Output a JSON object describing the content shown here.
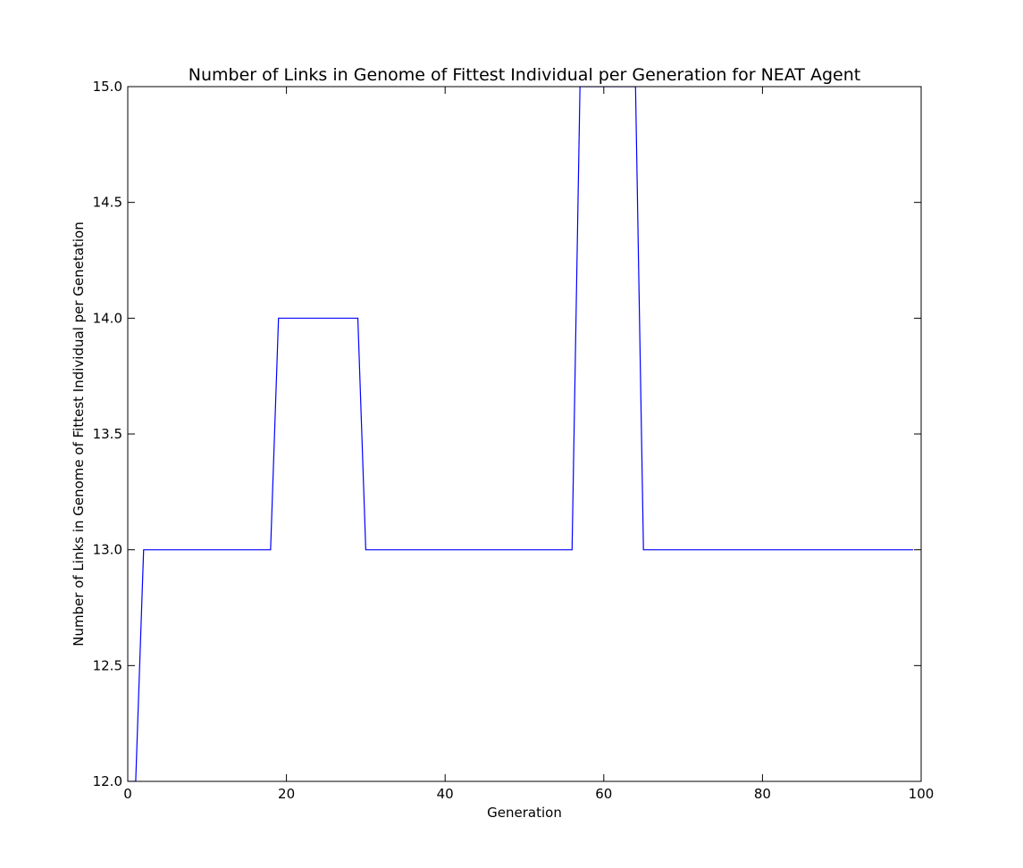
{
  "chart_data": {
    "type": "line",
    "title": "Number of Links in Genome of Fittest Individual per Generation for NEAT Agent",
    "xlabel": "Generation",
    "ylabel": "Number of Links in Genome of Fittest Individual per Genetation",
    "xlim": [
      0,
      100
    ],
    "ylim": [
      12.0,
      15.0
    ],
    "xticks": [
      0,
      20,
      40,
      60,
      80,
      100
    ],
    "xtick_labels": [
      "0",
      "20",
      "40",
      "60",
      "80",
      "100"
    ],
    "yticks": [
      12.0,
      12.5,
      13.0,
      13.5,
      14.0,
      14.5,
      15.0
    ],
    "ytick_labels": [
      "12.0",
      "12.5",
      "13.0",
      "13.5",
      "14.0",
      "14.5",
      "15.0"
    ],
    "grid": false,
    "legend": "none",
    "series": [
      {
        "color": "#0000ff",
        "x": [
          0,
          1,
          2,
          3,
          4,
          5,
          6,
          7,
          8,
          9,
          10,
          11,
          12,
          13,
          14,
          15,
          16,
          17,
          18,
          19,
          20,
          21,
          22,
          23,
          24,
          25,
          26,
          27,
          28,
          29,
          30,
          31,
          32,
          33,
          34,
          35,
          36,
          37,
          38,
          39,
          40,
          41,
          42,
          43,
          44,
          45,
          46,
          47,
          48,
          49,
          50,
          51,
          52,
          53,
          54,
          55,
          56,
          57,
          58,
          59,
          60,
          61,
          62,
          63,
          64,
          65,
          66,
          67,
          68,
          69,
          70,
          71,
          72,
          73,
          74,
          75,
          76,
          77,
          78,
          79,
          80,
          81,
          82,
          83,
          84,
          85,
          86,
          87,
          88,
          89,
          90,
          91,
          92,
          93,
          94,
          95,
          96,
          97,
          98,
          99
        ],
        "y": [
          12,
          12,
          13,
          13,
          13,
          13,
          13,
          13,
          13,
          13,
          13,
          13,
          13,
          13,
          13,
          13,
          13,
          13,
          13,
          14,
          14,
          14,
          14,
          14,
          14,
          14,
          14,
          14,
          14,
          14,
          13,
          13,
          13,
          13,
          13,
          13,
          13,
          13,
          13,
          13,
          13,
          13,
          13,
          13,
          13,
          13,
          13,
          13,
          13,
          13,
          13,
          13,
          13,
          13,
          13,
          13,
          13,
          15,
          15,
          15,
          15,
          15,
          15,
          15,
          15,
          13,
          13,
          13,
          13,
          13,
          13,
          13,
          13,
          13,
          13,
          13,
          13,
          13,
          13,
          13,
          13,
          13,
          13,
          13,
          13,
          13,
          13,
          13,
          13,
          13,
          13,
          13,
          13,
          13,
          13,
          13,
          13,
          13,
          13,
          13
        ]
      }
    ]
  }
}
